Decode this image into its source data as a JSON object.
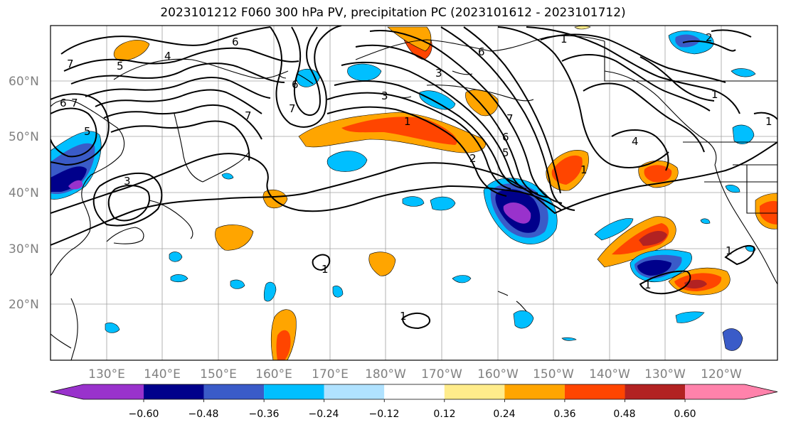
{
  "title": "2023101212 F060 300 hPa PV, precipitation PC (2023101612 - 2023101712)",
  "lat_labels": [
    "60°N",
    "50°N",
    "40°N",
    "30°N",
    "20°N"
  ],
  "lon_labels": [
    "130°E",
    "140°E",
    "150°E",
    "160°E",
    "170°E",
    "180°W",
    "170°W",
    "160°W",
    "150°W",
    "140°W",
    "130°W",
    "120°W"
  ],
  "colorbar": {
    "ticks": [
      "−0.60",
      "−0.48",
      "−0.36",
      "−0.24",
      "−0.12",
      "0.12",
      "0.24",
      "0.36",
      "0.48",
      "0.60"
    ],
    "colors": [
      "#9932cc",
      "#00008b",
      "#3a5bc8",
      "#00bfff",
      "#b0e2ff",
      "#ffffff",
      "#ffec8b",
      "#ffa500",
      "#ff4500",
      "#b22222",
      "#ff82ab"
    ]
  },
  "pv_contour_labels": [
    "1",
    "2",
    "3",
    "4",
    "5",
    "6",
    "7"
  ]
}
